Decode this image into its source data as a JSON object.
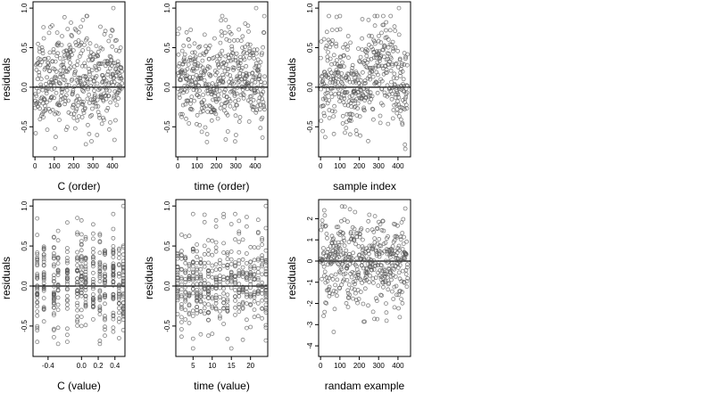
{
  "figure": {
    "description_colors": {
      "point": "#555555",
      "line": "#000000",
      "background": "#ffffff"
    }
  },
  "chart_data": [
    {
      "type": "scatter",
      "xlabel": "C (order)",
      "ylabel": "residuals",
      "xlim": [
        -10,
        465
      ],
      "ylim": [
        -0.88,
        1.08
      ],
      "xticks": [
        0,
        100,
        200,
        300,
        400
      ],
      "yticks": [
        -0.5,
        0.0,
        0.5,
        1.0
      ],
      "ytick_labels": [
        "-0.5",
        "0.0",
        "0.5",
        "1.0"
      ],
      "hline": 0,
      "n_points": 450,
      "y_range_observed": [
        -0.8,
        1.02
      ],
      "seed": 11,
      "pattern": "order"
    },
    {
      "type": "scatter",
      "xlabel": "time (order)",
      "ylabel": "residuals",
      "xlim": [
        -10,
        465
      ],
      "ylim": [
        -0.88,
        1.08
      ],
      "xticks": [
        0,
        100,
        200,
        300,
        400
      ],
      "yticks": [
        -0.5,
        0.0,
        0.5,
        1.0
      ],
      "ytick_labels": [
        "-0.5",
        "0.0",
        "0.5",
        "1.0"
      ],
      "hline": 0,
      "n_points": 450,
      "y_range_observed": [
        -0.8,
        1.02
      ],
      "seed": 23,
      "pattern": "order"
    },
    {
      "type": "scatter",
      "xlabel": "sample index",
      "ylabel": "residuals",
      "xlim": [
        -10,
        465
      ],
      "ylim": [
        -0.88,
        1.08
      ],
      "xticks": [
        0,
        100,
        200,
        300,
        400
      ],
      "yticks": [
        -0.5,
        0.0,
        0.5,
        1.0
      ],
      "ytick_labels": [
        "-0.5",
        "0.0",
        "0.5",
        "1.0"
      ],
      "hline": 0,
      "n_points": 450,
      "y_range_observed": [
        -0.8,
        1.02
      ],
      "seed": 37,
      "pattern": "wave"
    },
    {
      "type": "scatter",
      "xlabel": "C (value)",
      "ylabel": "residuals",
      "xlim": [
        -0.58,
        0.52
      ],
      "ylim": [
        -0.88,
        1.08
      ],
      "xticks": [
        -0.4,
        0.0,
        0.2,
        0.4
      ],
      "xtick_labels": [
        "-0.4",
        "0.0",
        "0.2",
        "0.4"
      ],
      "yticks": [
        -0.5,
        0.0,
        0.5,
        1.0
      ],
      "ytick_labels": [
        "-0.5",
        "0.0",
        "0.5",
        "1.0"
      ],
      "hline": 0,
      "n_points": 450,
      "x_levels": [
        -0.53,
        -0.45,
        -0.33,
        -0.28,
        -0.17,
        -0.05,
        0.0,
        0.05,
        0.14,
        0.22,
        0.28,
        0.38,
        0.45,
        0.5
      ],
      "y_range_observed": [
        -0.8,
        1.02
      ],
      "seed": 51,
      "pattern": "levels"
    },
    {
      "type": "scatter",
      "xlabel": "time (value)",
      "ylabel": "residuals",
      "xlim": [
        0.5,
        24.5
      ],
      "ylim": [
        -0.88,
        1.08
      ],
      "xticks": [
        5,
        10,
        15,
        20
      ],
      "yticks": [
        -0.5,
        0.0,
        0.5,
        1.0
      ],
      "ytick_labels": [
        "-0.5",
        "0.0",
        "0.5",
        "1.0"
      ],
      "hline": 0,
      "n_points": 450,
      "x_levels": [
        1,
        2,
        3,
        4,
        5,
        6,
        7,
        8,
        9,
        10,
        11,
        12,
        13,
        14,
        15,
        16,
        17,
        18,
        19,
        20,
        21,
        22,
        23,
        24
      ],
      "y_range_observed": [
        -0.8,
        1.02
      ],
      "seed": 67,
      "pattern": "levels"
    },
    {
      "type": "scatter",
      "xlabel": "randam example",
      "ylabel": "residuals",
      "xlim": [
        -10,
        465
      ],
      "ylim": [
        -4.5,
        2.9
      ],
      "xticks": [
        0,
        100,
        200,
        300,
        400
      ],
      "yticks": [
        -4,
        -3,
        -2,
        -1,
        0,
        1,
        2
      ],
      "ytick_labels": [
        "-4",
        "-3",
        "-2",
        "-1",
        "0",
        "1",
        "2"
      ],
      "hline": 0,
      "n_points": 450,
      "y_range_observed": [
        -4.4,
        2.6
      ],
      "seed": 89,
      "pattern": "normal"
    }
  ]
}
